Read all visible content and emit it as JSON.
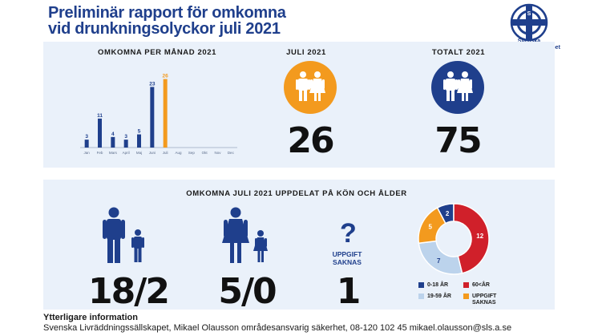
{
  "header": {
    "title_line1": "Preliminär rapport för omkomna",
    "title_line2": "vid drunkningsolyckor juli 2021",
    "logo_letters": "SLS",
    "logo_text_line1": "Svenska",
    "logo_text_line2": "Livräddningssällskapet"
  },
  "top": {
    "monthly_title": "OMKOMNA PER MÅNAD 2021",
    "july_title": "JULI 2021",
    "july_value": "26",
    "total_title": "TOTALT 2021",
    "total_value": "75"
  },
  "bottom": {
    "title": "OMKOMNA JULI 2021 UPPDELAT PÅ KÖN OCH ÅLDER",
    "men_value": "18/2",
    "women_value": "5/0",
    "unknown_mark": "?",
    "unknown_line1": "UPPGIFT",
    "unknown_line2": "SAKNAS",
    "unknown_value": "1",
    "legend": {
      "age_0_18": "0-18 ÅR",
      "age_19_59": "19-59 ÅR",
      "age_60": "60<ÅR",
      "unknown_line1": "UPPGIFT",
      "unknown_line2": "SAKNAS"
    }
  },
  "footer": {
    "heading": "Ytterligare information",
    "text": "Svenska Livräddningssällskapet, Mikael Olausson områdesansvarig säkerhet, 08-120 102 45 mikael.olausson@sls.a.se"
  },
  "colors": {
    "navy": "#1f3f8c",
    "orange": "#f39a1e",
    "red": "#d0202a",
    "lightblue": "#bcd3ec",
    "panel": "#eaf1fa"
  },
  "chart_data": [
    {
      "type": "bar",
      "title": "OMKOMNA PER MÅNAD 2021",
      "categories": [
        "Jan",
        "Feb",
        "Mars",
        "April",
        "Maj",
        "Juni",
        "Juli",
        "Aug",
        "Sep",
        "Okt",
        "Nov",
        "Dec"
      ],
      "values": [
        3,
        11,
        4,
        3,
        5,
        23,
        26,
        null,
        null,
        null,
        null,
        null
      ],
      "highlight": "Juli",
      "ylim": [
        0,
        28
      ],
      "grid": false
    },
    {
      "type": "pie",
      "title": "",
      "labels": [
        "0-18 ÅR",
        "60<ÅR",
        "19-59 ÅR",
        "UPPGIFT SAKNAS"
      ],
      "values": [
        2,
        12,
        7,
        5
      ],
      "colors": [
        "#1f3f8c",
        "#d0202a",
        "#bcd3ec",
        "#f39a1e"
      ]
    }
  ]
}
